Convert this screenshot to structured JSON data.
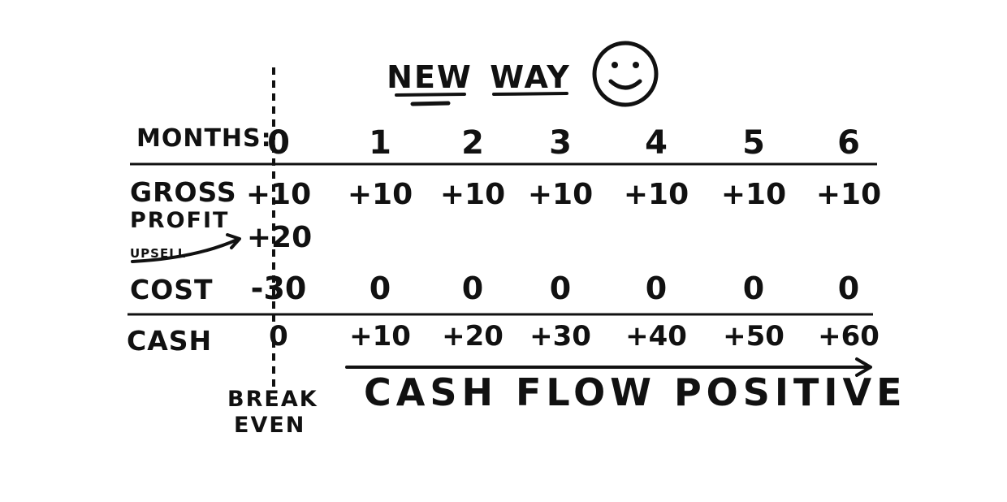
{
  "title": {
    "word1": "NEW",
    "word2": "WAY"
  },
  "icons": {
    "face": "smiley-face-icon",
    "arrow": "arrow-right-icon",
    "upsell_arrow": "curved-arrow-icon"
  },
  "table": {
    "months_label": "MONTHS:",
    "months": [
      "0",
      "1",
      "2",
      "3",
      "4",
      "5",
      "6"
    ],
    "gross_profit_label_1": "GROSS",
    "gross_profit_label_2": "PROFIT",
    "gross_profit": [
      "+10",
      "+10",
      "+10",
      "+10",
      "+10",
      "+10",
      "+10"
    ],
    "upsell_label": "UPSELL",
    "upsell_value": "+20",
    "cost_label": "COST",
    "cost": [
      "-30",
      "0",
      "0",
      "0",
      "0",
      "0",
      "0"
    ],
    "cash_label": "CASH",
    "cash": [
      "0",
      "+10",
      "+20",
      "+30",
      "+40",
      "+50",
      "+60"
    ]
  },
  "break_even": {
    "line1": "BREAK",
    "line2": "EVEN"
  },
  "cash_flow_label": "CASH FLOW POSITIVE"
}
